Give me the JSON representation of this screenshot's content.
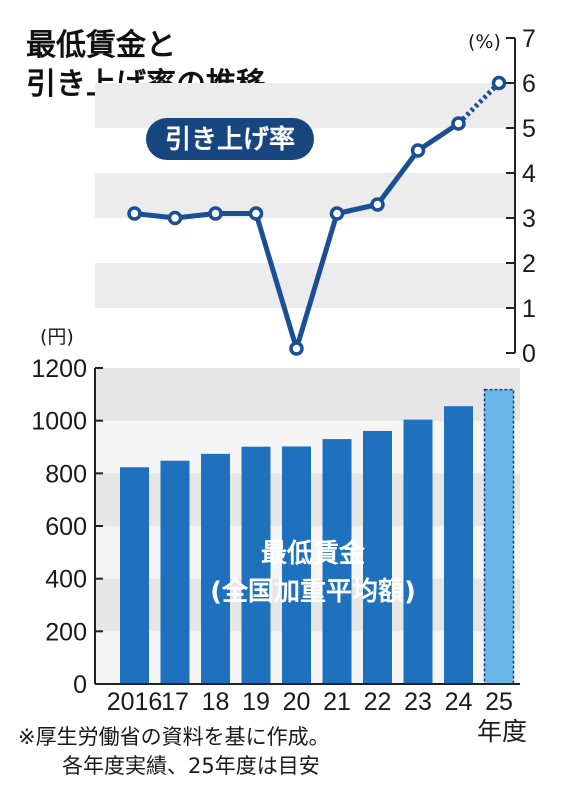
{
  "title_line1": "最低賃金と",
  "title_line2": "引き上げ率の推移",
  "notes": [
    "※厚生労働省の資料を基に作成。",
    "各年度実績、25年度は目安"
  ],
  "colors": {
    "bar": "#1f70bd",
    "bar_estimate": "#6ab7ea",
    "line": "#1a4f94",
    "band": "#ececec",
    "badge": "#17467f"
  },
  "chart_data": [
    {
      "type": "line",
      "series_label": "引き上げ率",
      "unit": "(%)",
      "categories": [
        "2016",
        "17",
        "18",
        "19",
        "20",
        "21",
        "22",
        "23",
        "24",
        "25"
      ],
      "values": [
        3.1,
        3.0,
        3.1,
        3.1,
        0.1,
        3.1,
        3.3,
        4.5,
        5.1,
        6.0
      ],
      "estimate_last": true,
      "ylim": [
        0,
        7
      ],
      "yticks": [
        0,
        1,
        2,
        3,
        4,
        5,
        6,
        7
      ],
      "axis_position": "right"
    },
    {
      "type": "bar",
      "series_label": "最低賃金",
      "series_sublabel": "(全国加重平均額)",
      "unit": "(円)",
      "categories": [
        "2016",
        "17",
        "18",
        "19",
        "20",
        "21",
        "22",
        "23",
        "24",
        "25"
      ],
      "xlabel": "年度",
      "values": [
        823,
        848,
        874,
        901,
        902,
        930,
        961,
        1004,
        1055,
        1118
      ],
      "estimate_last": true,
      "ylim": [
        0,
        1200
      ],
      "yticks": [
        0,
        200,
        400,
        600,
        800,
        1000,
        1200
      ]
    }
  ]
}
